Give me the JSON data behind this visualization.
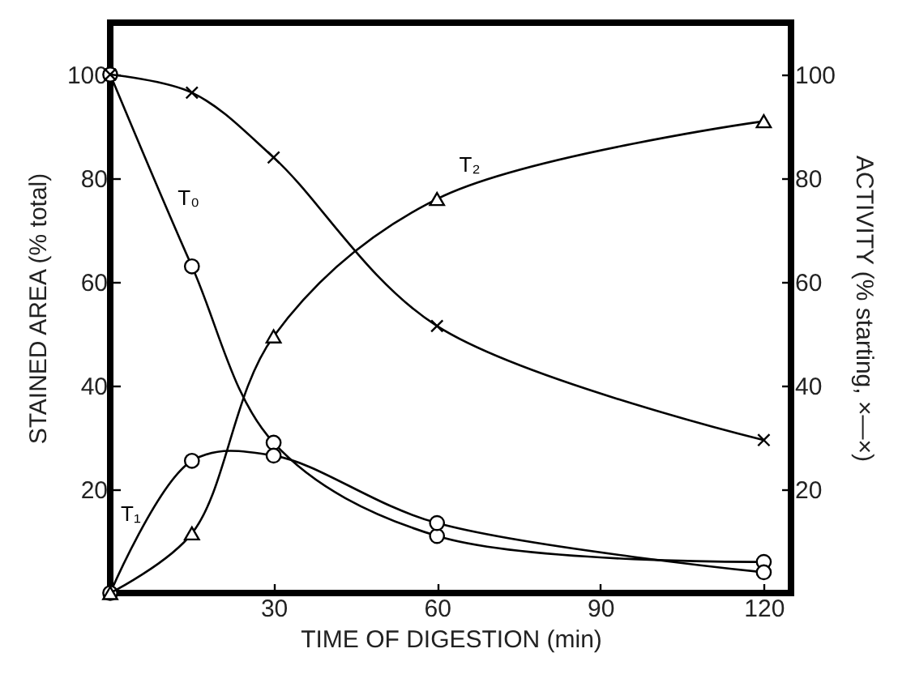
{
  "chart_data": {
    "type": "line",
    "xlabel": "TIME OF DIGESTION (min)",
    "ylabel": "STAINED AREA (% total)",
    "y2label": "ACTIVITY (% starting, ×—×)",
    "x": [
      0,
      15,
      30,
      60,
      120
    ],
    "series": [
      {
        "name": "T₀",
        "color": "#000000",
        "marker": "circle",
        "values": [
          100,
          63,
          29,
          11,
          6
        ]
      },
      {
        "name": "T₁",
        "color": "#000000",
        "marker": "circle",
        "values": [
          0,
          25.5,
          26.5,
          13.5,
          4
        ]
      },
      {
        "name": "T₂",
        "color": "#000000",
        "marker": "triangle",
        "values": [
          0,
          11.5,
          49.5,
          76,
          91
        ]
      },
      {
        "color": "#000000",
        "marker": "cross",
        "axis": "y2",
        "values": [
          100,
          96.5,
          84,
          51.5,
          29.5
        ]
      }
    ],
    "xlim": [
      0,
      125
    ],
    "xticks": [
      30,
      60,
      90,
      120
    ],
    "ylim": [
      0,
      110
    ],
    "yticks": [
      20,
      40,
      60,
      80,
      100
    ],
    "y2lim": [
      0,
      110
    ],
    "y2ticks": [
      20,
      40,
      60,
      80,
      100
    ],
    "line_style": "solid"
  }
}
